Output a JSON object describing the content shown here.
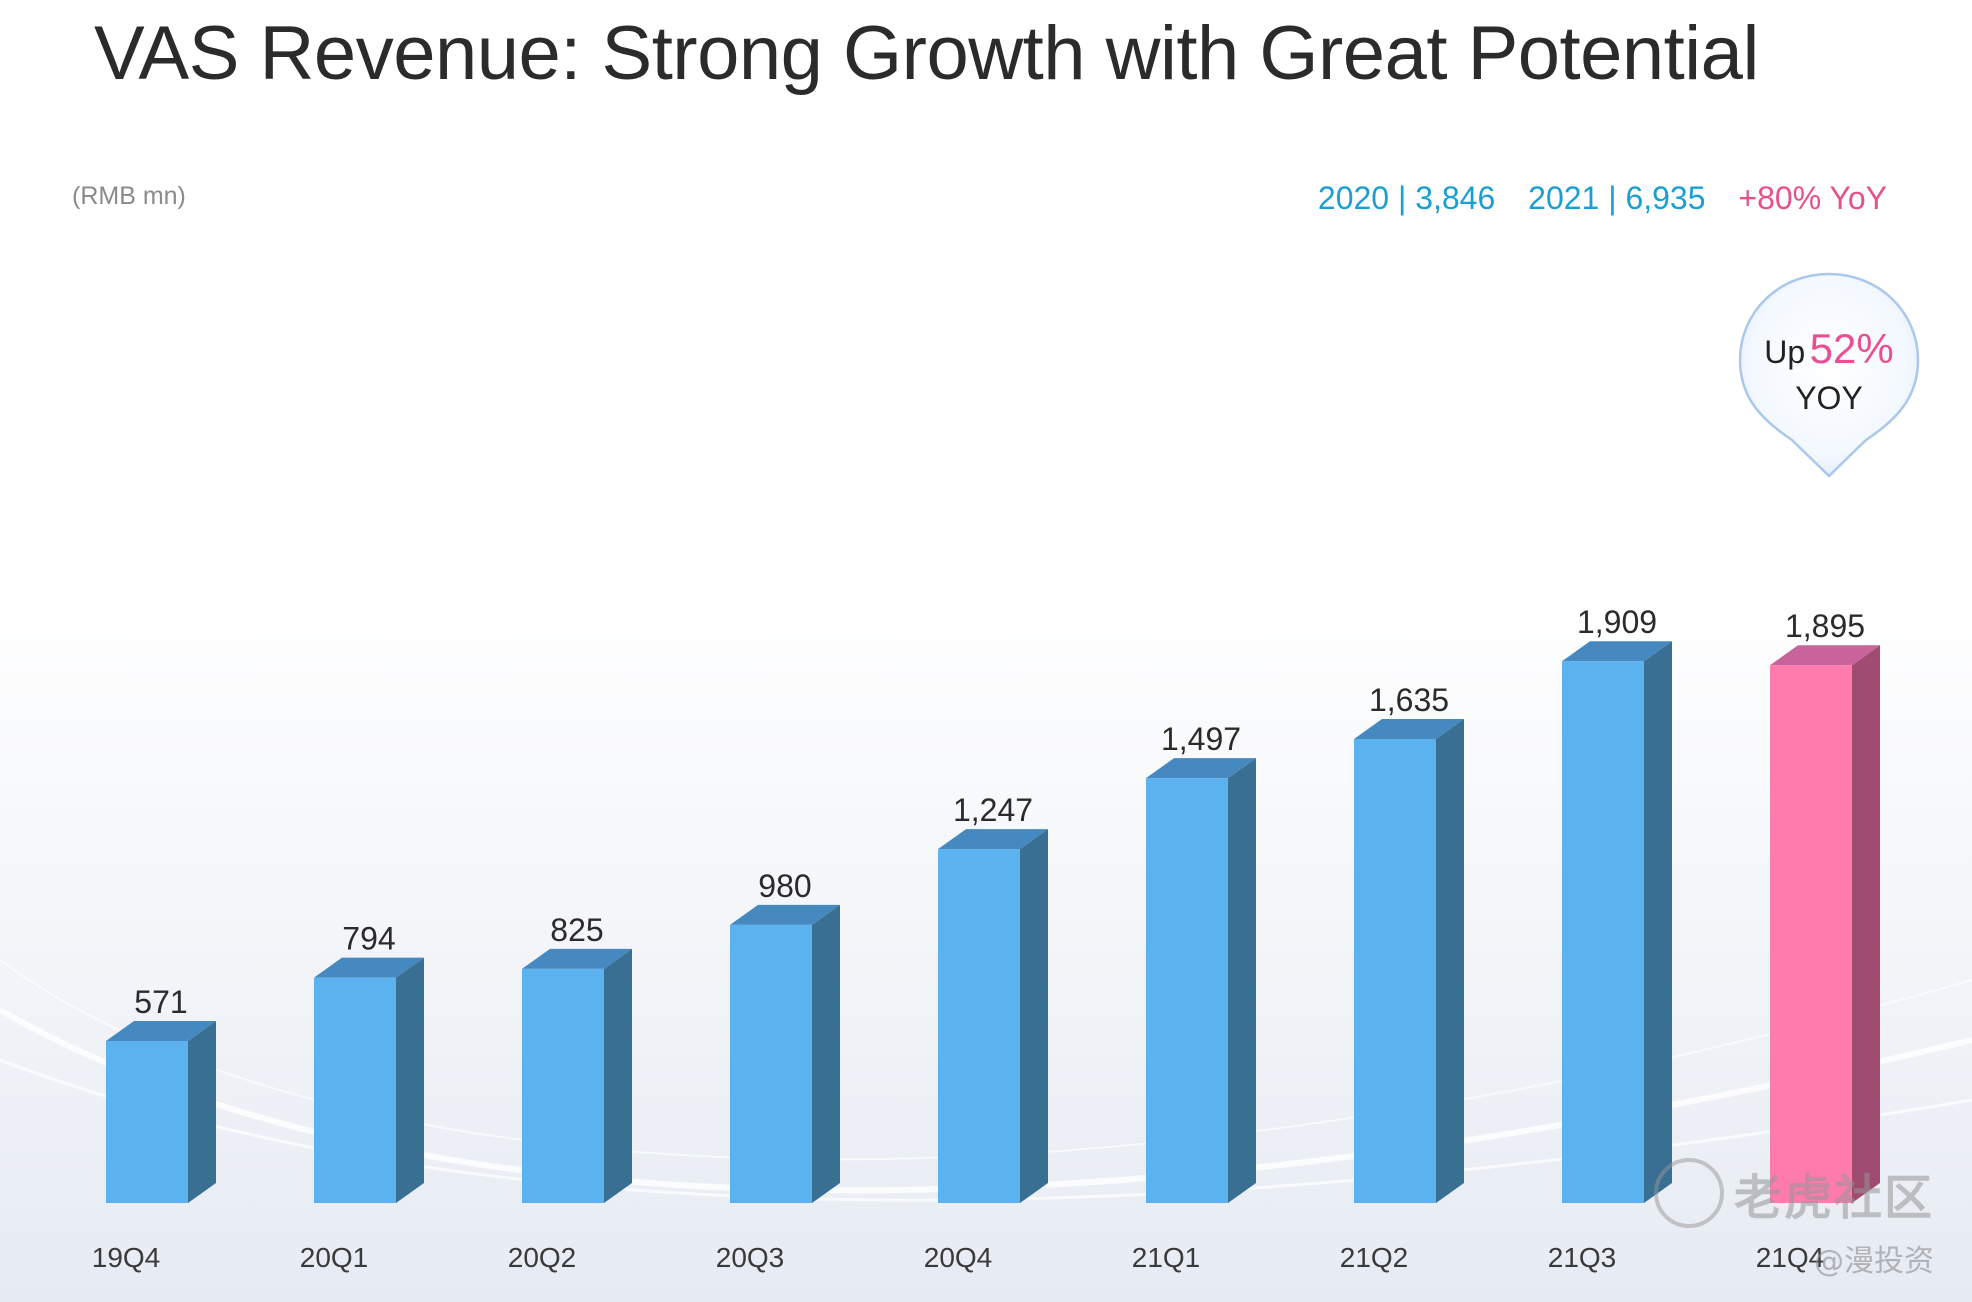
{
  "header": {
    "title": "VAS Revenue: Strong Growth with Great Potential",
    "unit": "(RMB mn)"
  },
  "summary": {
    "y2020": "2020 | 3,846",
    "y2021": "2021 | 6,935",
    "yoy": "+80% YoY"
  },
  "callout": {
    "prefix": "Up",
    "percent": "52%",
    "suffix": "YOY"
  },
  "watermark": {
    "brand": "老虎社区",
    "handle": "@漫投资"
  },
  "colors": {
    "bar_front": "#5bb2ee",
    "bar_side": "#3a6f94",
    "bar_top": "#4689c1",
    "highlight_front": "#ff7bae",
    "highlight_side": "#a04b70",
    "highlight_top": "#c8649a",
    "summary_blue": "#1a9fd4",
    "summary_pink": "#e8508b"
  },
  "chart_data": {
    "type": "bar",
    "categories": [
      "19Q4",
      "20Q1",
      "20Q2",
      "20Q3",
      "20Q4",
      "21Q1",
      "21Q2",
      "21Q3",
      "21Q4"
    ],
    "values": [
      571,
      794,
      825,
      980,
      1247,
      1497,
      1635,
      1909,
      1895
    ],
    "value_labels": [
      "571",
      "794",
      "825",
      "980",
      "1,247",
      "1,497",
      "1,635",
      "1,909",
      "1,895"
    ],
    "highlight_index": 8,
    "ylabel": "(RMB mn)",
    "grid": false,
    "style": "3d-bars"
  }
}
